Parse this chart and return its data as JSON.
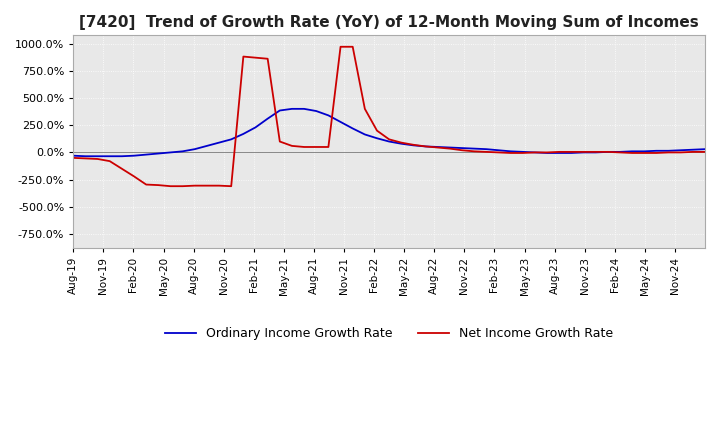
{
  "title": "[7420]  Trend of Growth Rate (YoY) of 12-Month Moving Sum of Incomes",
  "title_fontsize": 11,
  "ylim": [
    -875,
    1075
  ],
  "yticks": [
    -750,
    -500,
    -250,
    0,
    250,
    500,
    750,
    1000
  ],
  "background_color": "#ffffff",
  "plot_bg_color": "#e8e8e8",
  "grid_color": "#ffffff",
  "ordinary_color": "#0000cc",
  "net_color": "#cc0000",
  "legend_labels": [
    "Ordinary Income Growth Rate",
    "Net Income Growth Rate"
  ],
  "x_labels": [
    "Aug-19",
    "Nov-19",
    "Feb-20",
    "May-20",
    "Aug-20",
    "Nov-20",
    "Feb-21",
    "May-21",
    "Aug-21",
    "Nov-21",
    "Feb-22",
    "May-22",
    "Aug-22",
    "Nov-22",
    "Feb-23",
    "May-23",
    "Aug-23",
    "Nov-23",
    "Feb-24",
    "May-24",
    "Nov-24"
  ],
  "ordinary_y": [
    -30,
    -35,
    -35,
    -35,
    -35,
    -30,
    -20,
    -10,
    0,
    10,
    30,
    60,
    90,
    120,
    170,
    230,
    310,
    385,
    400,
    400,
    380,
    340,
    280,
    220,
    165,
    130,
    100,
    80,
    65,
    55,
    50,
    45,
    40,
    35,
    30,
    20,
    10,
    5,
    0,
    -5,
    -5,
    -5,
    0,
    0,
    5,
    5,
    10,
    10,
    15,
    15,
    20,
    25,
    30
  ],
  "net_y": [
    -50,
    -55,
    -60,
    -80,
    -150,
    -220,
    -295,
    -300,
    -310,
    -310,
    -305,
    -305,
    -305,
    -310,
    880,
    870,
    860,
    100,
    60,
    50,
    50,
    50,
    970,
    970,
    400,
    200,
    120,
    90,
    70,
    55,
    45,
    35,
    20,
    10,
    5,
    0,
    -5,
    -5,
    0,
    0,
    5,
    5,
    5,
    5,
    5,
    0,
    -5,
    -5,
    -5,
    0,
    0,
    5,
    5
  ]
}
